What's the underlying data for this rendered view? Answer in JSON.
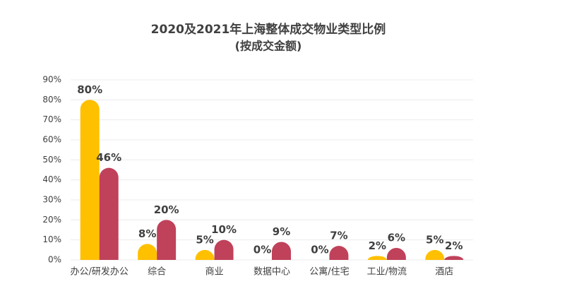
{
  "chart_data": {
    "type": "bar",
    "title": "2020及2021年上海整体成交物业类型比例",
    "subtitle": "(按成交金额)",
    "categories": [
      "办公/研发办公",
      "综合",
      "商业",
      "数据中心",
      "公寓/住宅",
      "工业/物流",
      "酒店"
    ],
    "series": [
      {
        "color": "#ffc000",
        "values": [
          80,
          8,
          5,
          0,
          0,
          2,
          5
        ],
        "value_labels": [
          "80%",
          "8%",
          "5%",
          "0%",
          "0%",
          "2%",
          "5%"
        ]
      },
      {
        "color": "#c0415a",
        "values": [
          46,
          20,
          10,
          9,
          7,
          6,
          2
        ],
        "value_labels": [
          "46%",
          "20%",
          "10%",
          "9%",
          "7%",
          "6%",
          "2%"
        ]
      }
    ],
    "ylim": [
      0,
      90
    ],
    "yticks": [
      {
        "value": 0,
        "label": "0%"
      },
      {
        "value": 10,
        "label": "10%"
      },
      {
        "value": 20,
        "label": "20%"
      },
      {
        "value": 30,
        "label": "30%"
      },
      {
        "value": 40,
        "label": "40%"
      },
      {
        "value": 50,
        "label": "50%"
      },
      {
        "value": 60,
        "label": "60%"
      },
      {
        "value": 70,
        "label": "70%"
      },
      {
        "value": 80,
        "label": "80%"
      },
      {
        "value": 90,
        "label": "90%"
      }
    ],
    "grid": true
  }
}
